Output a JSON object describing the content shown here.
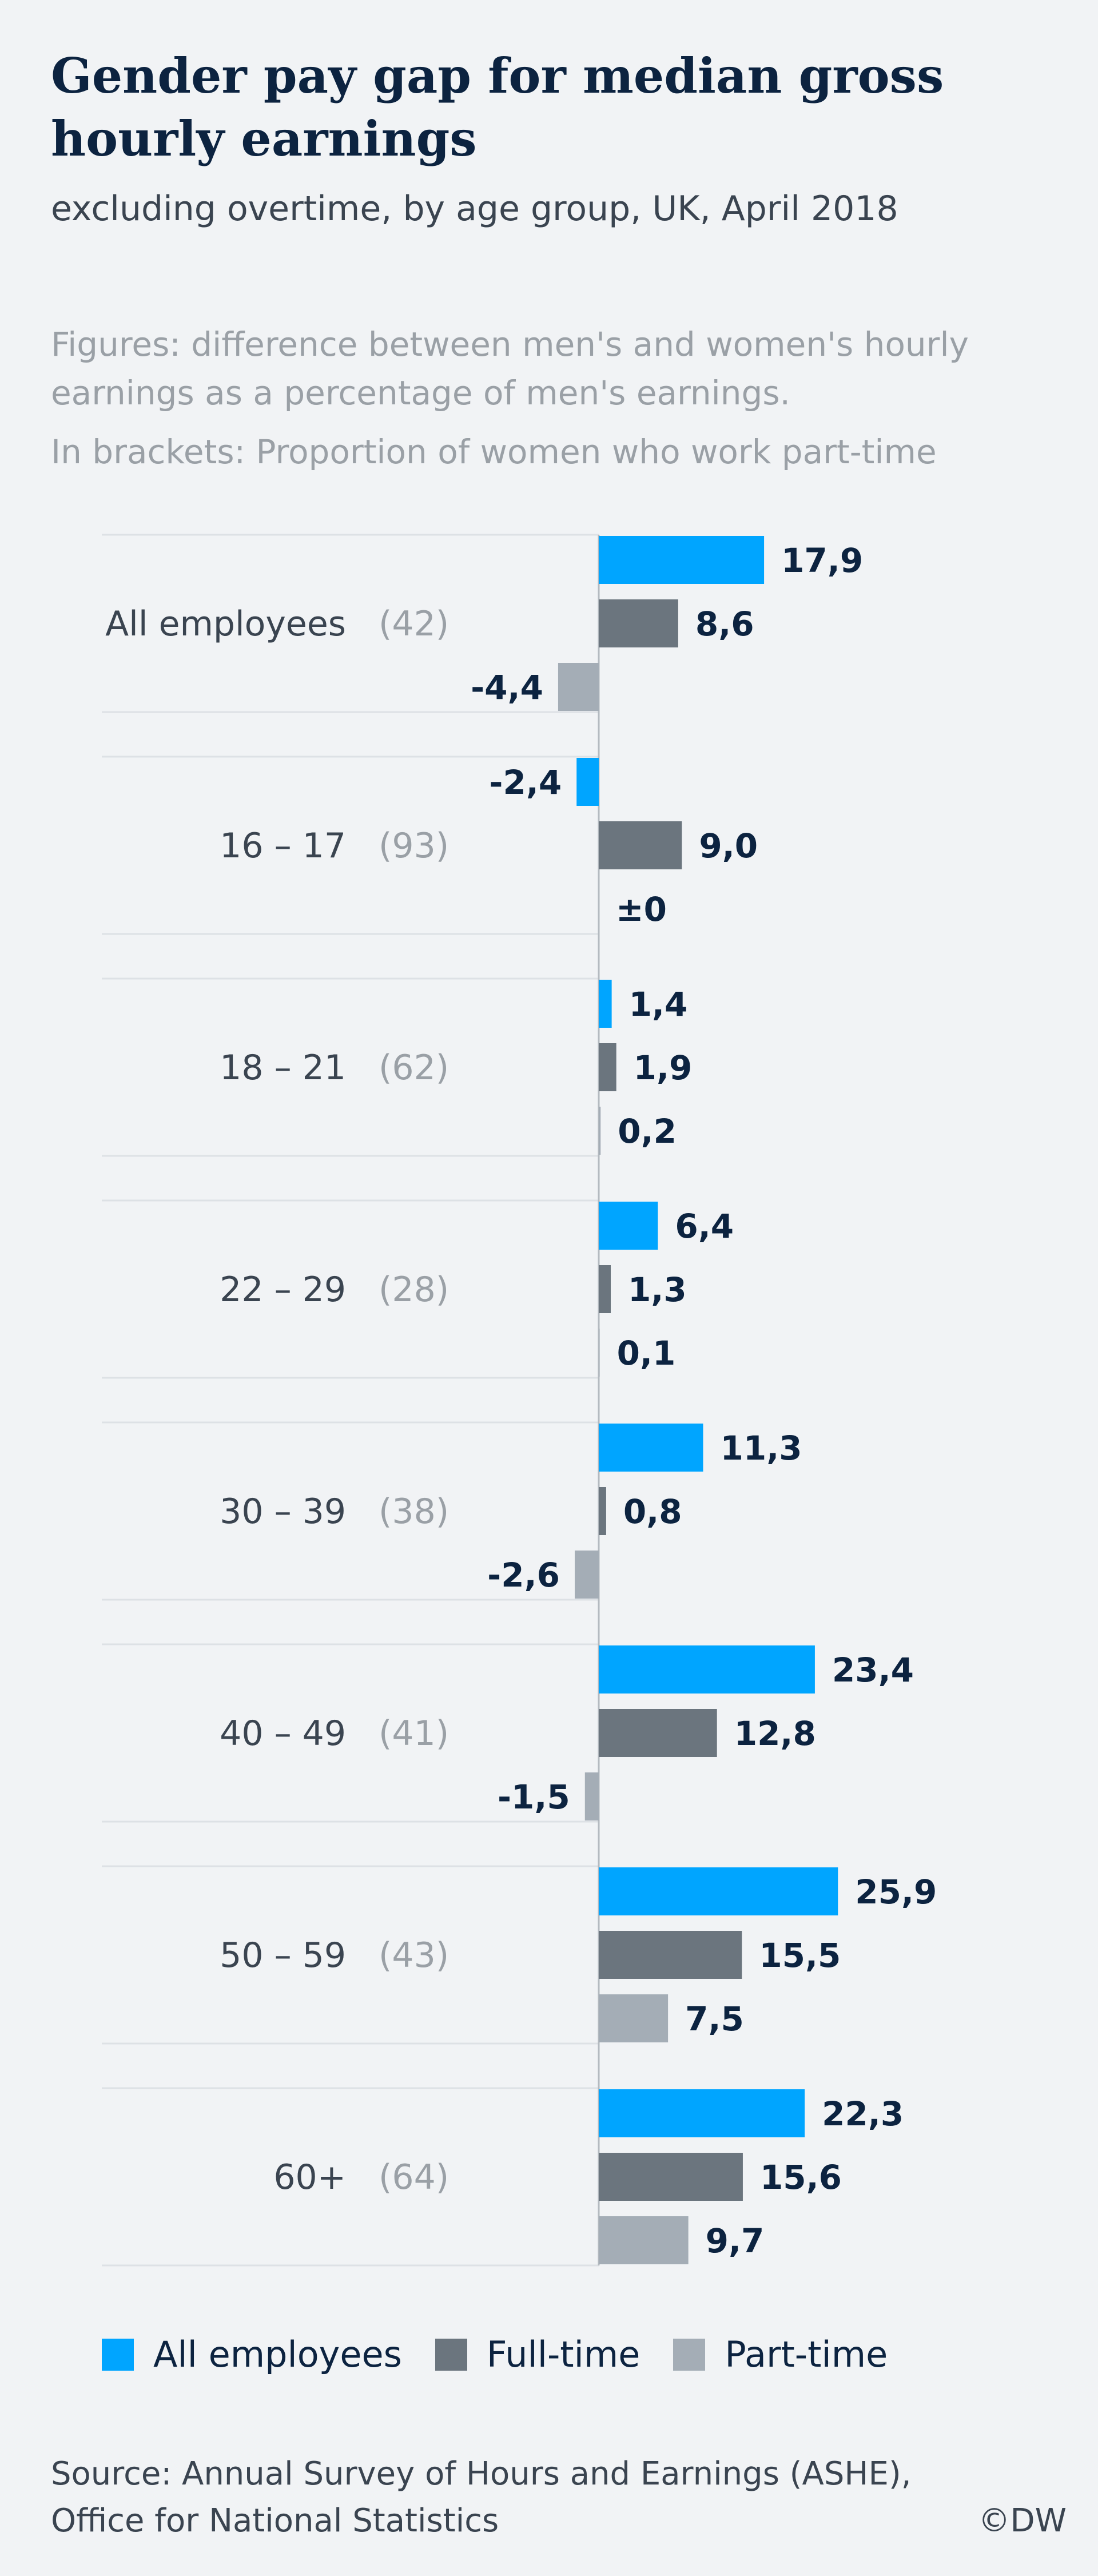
{
  "header": {
    "title": "Gender pay gap for median gross hourly earnings",
    "subtitle": "excluding overtime, by age group, UK, April 2018",
    "note_figures": "Figures: difference between men's and women's hourly earnings as a percentage of men's earnings.",
    "note_brackets": "In brackets: Proportion of women who work part-time"
  },
  "colors": {
    "all_employees": "#00a5ff",
    "full_time": "#6b757e",
    "part_time": "#a4adb6",
    "value_text": "#0c2340",
    "label_text": "#3a4450",
    "bracket_text": "#9aa0a6"
  },
  "chart_data": {
    "type": "bar",
    "orientation": "horizontal",
    "categories": [
      "All employees",
      "16 – 17",
      "18 – 21",
      "22 – 29",
      "30 – 39",
      "40 – 49",
      "50 – 59",
      "60+"
    ],
    "category_notes": [
      "(42)",
      "(93)",
      "(62)",
      "(28)",
      "(38)",
      "(41)",
      "(43)",
      "(64)"
    ],
    "series": [
      {
        "name": "All employees",
        "values": [
          17.9,
          -2.4,
          1.4,
          6.4,
          11.3,
          23.4,
          25.9,
          22.3
        ],
        "labels": [
          "17,9",
          "-2,4",
          "1,4",
          "6,4",
          "11,3",
          "23,4",
          "25,9",
          "22,3"
        ]
      },
      {
        "name": "Full-time",
        "values": [
          8.6,
          9.0,
          1.9,
          1.3,
          0.8,
          12.8,
          15.5,
          15.6
        ],
        "labels": [
          "8,6",
          "9,0",
          "1,9",
          "1,3",
          "0,8",
          "12,8",
          "15,5",
          "15,6"
        ]
      },
      {
        "name": "Part-time",
        "values": [
          -4.4,
          0,
          0.2,
          0.1,
          -2.6,
          -1.5,
          7.5,
          9.7
        ],
        "labels": [
          "-4,4",
          "±0",
          "0,2",
          "0,1",
          "-2,6",
          "-1,5",
          "7,5",
          "9,7"
        ]
      }
    ],
    "grid": false,
    "legend_position": "bottom"
  },
  "legend": {
    "all_employees": "All employees",
    "full_time": "Full-time",
    "part_time": "Part-time"
  },
  "footer": {
    "source": "Source: Annual Survey of Hours and Earnings (ASHE), Office for National Statistics",
    "copyright": "©DW"
  }
}
